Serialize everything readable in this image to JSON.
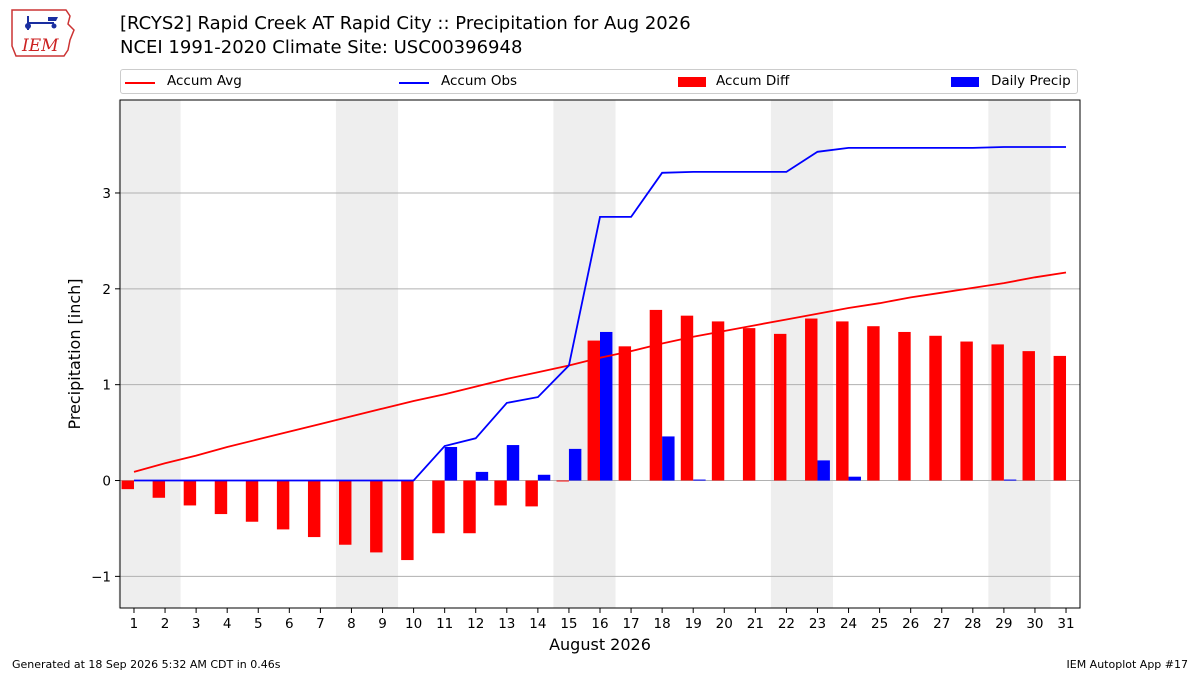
{
  "logo": {
    "text": "IEM",
    "icon": "iowa-state-outline-weather-station-icon"
  },
  "header": {
    "title_line1": "[RCYS2] Rapid Creek  AT Rapid City :: Precipitation for Aug 2026",
    "title_line2": "NCEI 1991-2020 Climate Site: USC00396948"
  },
  "legend": {
    "items": [
      {
        "label": "Accum Avg",
        "kind": "line",
        "color": "#ff0000"
      },
      {
        "label": "Accum Obs",
        "kind": "line",
        "color": "#0000ff"
      },
      {
        "label": "Accum Diff",
        "kind": "bar",
        "color": "#ff0000"
      },
      {
        "label": "Daily Precip",
        "kind": "bar",
        "color": "#0000ff"
      }
    ]
  },
  "footer": {
    "generated": "Generated at 18 Sep 2026 5:32 AM CDT in 0.46s",
    "app": "IEM Autoplot App #17"
  },
  "chart_data": {
    "type": "bar",
    "xlabel": "August 2026",
    "ylabel": "Precipitation [inch]",
    "ylim": [
      -1.33,
      3.97
    ],
    "yticks": [
      -1,
      0,
      1,
      2,
      3
    ],
    "ytick_labels": [
      "−1",
      "0",
      "1",
      "2",
      "3"
    ],
    "grid": "horizontal",
    "weekend_shading": [
      [
        1,
        2
      ],
      [
        8,
        9
      ],
      [
        15,
        16
      ],
      [
        22,
        23
      ],
      [
        29,
        30
      ]
    ],
    "shade_color": "#eeeeee",
    "categories": [
      "1",
      "2",
      "3",
      "4",
      "5",
      "6",
      "7",
      "8",
      "9",
      "10",
      "11",
      "12",
      "13",
      "14",
      "15",
      "16",
      "17",
      "18",
      "19",
      "20",
      "21",
      "22",
      "23",
      "24",
      "25",
      "26",
      "27",
      "28",
      "29",
      "30",
      "31"
    ],
    "series": [
      {
        "name": "Accum Avg",
        "kind": "line",
        "color": "#ff0000",
        "values": [
          0.09,
          0.18,
          0.26,
          0.35,
          0.43,
          0.51,
          0.59,
          0.67,
          0.75,
          0.83,
          0.9,
          0.98,
          1.06,
          1.13,
          1.2,
          1.28,
          1.35,
          1.43,
          1.5,
          1.56,
          1.62,
          1.68,
          1.74,
          1.8,
          1.85,
          1.91,
          1.96,
          2.01,
          2.06,
          2.12,
          2.17
        ]
      },
      {
        "name": "Accum Obs",
        "kind": "line",
        "color": "#0000ff",
        "values": [
          0,
          0,
          0,
          0,
          0,
          0,
          0,
          0,
          0,
          0,
          0.36,
          0.44,
          0.81,
          0.87,
          1.2,
          2.75,
          2.75,
          3.21,
          3.22,
          3.22,
          3.22,
          3.22,
          3.43,
          3.47,
          3.47,
          3.47,
          3.47,
          3.47,
          3.48,
          3.48,
          3.48
        ]
      },
      {
        "name": "Accum Diff",
        "kind": "bar",
        "color": "#ff0000",
        "values": [
          -0.09,
          -0.18,
          -0.26,
          -0.35,
          -0.43,
          -0.51,
          -0.59,
          -0.67,
          -0.75,
          -0.83,
          -0.55,
          -0.55,
          -0.26,
          -0.27,
          -0.01,
          1.46,
          1.4,
          1.78,
          1.72,
          1.66,
          1.59,
          1.53,
          1.69,
          1.66,
          1.61,
          1.55,
          1.51,
          1.45,
          1.42,
          1.35,
          1.3
        ]
      },
      {
        "name": "Daily Precip",
        "kind": "bar",
        "color": "#0000ff",
        "values": [
          0,
          0,
          0,
          0,
          0,
          0,
          0,
          0,
          0,
          0,
          0.35,
          0.09,
          0.37,
          0.06,
          0.33,
          1.55,
          0,
          0.46,
          0.01,
          0,
          0,
          0,
          0.21,
          0.04,
          0,
          0,
          0,
          0,
          0.01,
          0,
          0
        ]
      }
    ]
  }
}
